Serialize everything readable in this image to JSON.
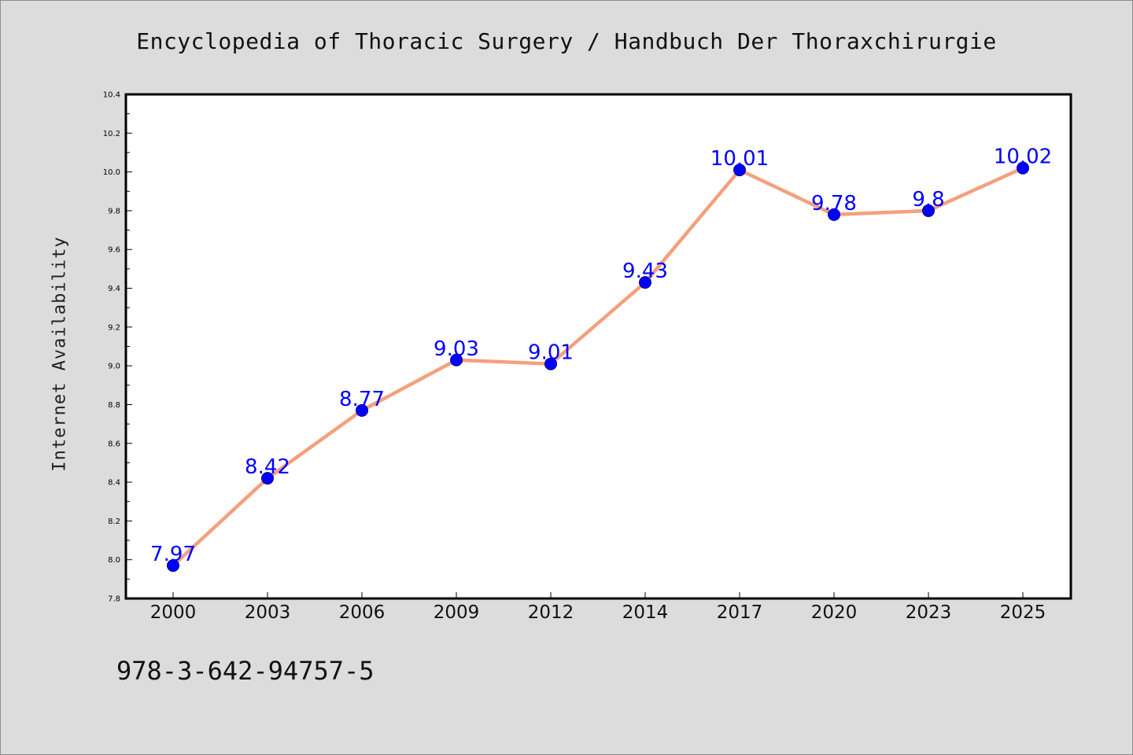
{
  "title": "Encyclopedia of Thoracic Surgery / Handbuch Der Thoraxchirurgie",
  "footer": {
    "isbn": "978-3-642-94757-5"
  },
  "colors": {
    "background": "#dcdcdc",
    "plot_background": "#ffffff",
    "line": "#f4a07e",
    "marker": "#0000ff",
    "data_label": "#0000ff"
  },
  "chart_data": {
    "type": "line",
    "title": "Encyclopedia of Thoracic Surgery / Handbuch Der Thoraxchirurgie",
    "xlabel": "",
    "ylabel": "Internet Availability",
    "categories": [
      "2000",
      "2003",
      "2006",
      "2009",
      "2012",
      "2014",
      "2017",
      "2020",
      "2023",
      "2025"
    ],
    "values": [
      7.97,
      8.42,
      8.77,
      9.03,
      9.01,
      9.43,
      10.01,
      9.78,
      9.8,
      10.02
    ],
    "value_labels": [
      "7.97",
      "8.42",
      "8.77",
      "9.03",
      "9.01",
      "9.43",
      "10.01",
      "9.78",
      "9.8",
      "10.02"
    ],
    "ylim": [
      7.8,
      10.4
    ],
    "yticks": [
      "7.8",
      "8.0",
      "8.2",
      "8.4",
      "8.6",
      "8.8",
      "9.0",
      "9.2",
      "9.4",
      "9.6",
      "9.8",
      "10.0",
      "10.2",
      "10.4"
    ],
    "grid": false,
    "legend": "none"
  }
}
